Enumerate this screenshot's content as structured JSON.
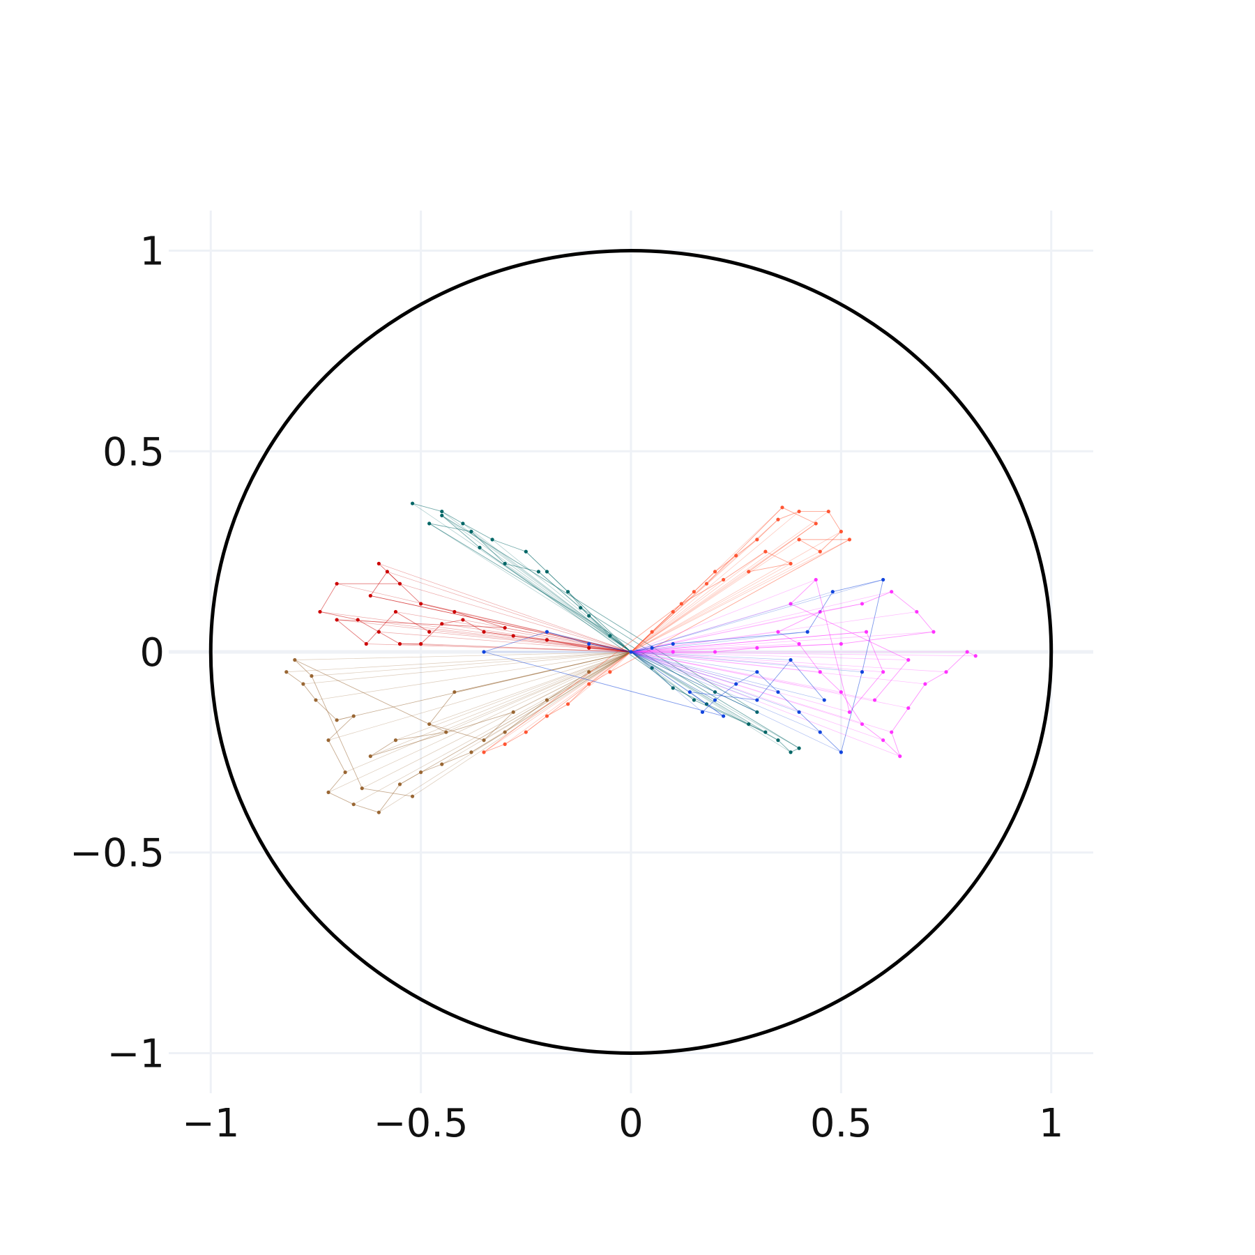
{
  "chart_data": {
    "type": "scatter",
    "title": "",
    "xlabel": "",
    "ylabel": "",
    "xlim": [
      -1.1,
      1.1
    ],
    "ylim": [
      -1.1,
      1.1
    ],
    "grid": true,
    "legend": "none",
    "x_ticks": [
      {
        "value": -1,
        "label": "−1"
      },
      {
        "value": -0.5,
        "label": "−0.5"
      },
      {
        "value": 0,
        "label": "0"
      },
      {
        "value": 0.5,
        "label": "0.5"
      },
      {
        "value": 1,
        "label": "1"
      }
    ],
    "y_ticks": [
      {
        "value": 1,
        "label": "1"
      },
      {
        "value": 0.5,
        "label": "0.5"
      },
      {
        "value": 0,
        "label": "0"
      },
      {
        "value": -0.5,
        "label": "−0.5"
      },
      {
        "value": -1,
        "label": "−1"
      }
    ],
    "unit_circle": {
      "center": [
        0,
        0
      ],
      "radius": 1,
      "color": "#000000"
    },
    "series": [
      {
        "color": "#006666",
        "mode": "lines+markers",
        "points": [
          [
            -0.52,
            0.37
          ],
          [
            -0.45,
            0.35
          ],
          [
            -0.4,
            0.32
          ],
          [
            -0.33,
            0.28
          ],
          [
            -0.25,
            0.25
          ],
          [
            -0.2,
            0.2
          ],
          [
            -0.15,
            0.15
          ],
          [
            -0.1,
            0.09
          ],
          [
            -0.05,
            0.04
          ],
          [
            0.0,
            0.0
          ],
          [
            0.05,
            -0.04
          ],
          [
            0.1,
            -0.09
          ],
          [
            0.18,
            -0.13
          ],
          [
            0.28,
            -0.18
          ],
          [
            0.35,
            -0.22
          ],
          [
            0.38,
            -0.25
          ],
          [
            0.4,
            -0.24
          ],
          [
            -0.48,
            0.32
          ],
          [
            -0.38,
            0.3
          ],
          [
            -0.3,
            0.22
          ],
          [
            -0.22,
            0.2
          ],
          [
            -0.12,
            0.11
          ],
          [
            0.2,
            -0.1
          ],
          [
            0.3,
            -0.15
          ],
          [
            -0.45,
            0.34
          ],
          [
            -0.36,
            0.26
          ],
          [
            0.15,
            -0.12
          ],
          [
            0.32,
            -0.2
          ]
        ]
      },
      {
        "color": "#cc0000",
        "mode": "lines+markers",
        "points": [
          [
            -0.6,
            0.22
          ],
          [
            -0.55,
            0.17
          ],
          [
            -0.7,
            0.17
          ],
          [
            -0.74,
            0.1
          ],
          [
            -0.65,
            0.08
          ],
          [
            -0.6,
            0.05
          ],
          [
            -0.55,
            0.02
          ],
          [
            -0.5,
            0.02
          ],
          [
            -0.45,
            0.07
          ],
          [
            -0.4,
            0.08
          ],
          [
            -0.35,
            0.05
          ],
          [
            -0.28,
            0.04
          ],
          [
            -0.2,
            0.03
          ],
          [
            -0.1,
            0.01
          ],
          [
            0.0,
            0.0
          ],
          [
            -0.62,
            0.14
          ],
          [
            -0.58,
            0.2
          ],
          [
            -0.5,
            0.12
          ],
          [
            -0.42,
            0.1
          ],
          [
            -0.3,
            0.06
          ],
          [
            -0.7,
            0.08
          ],
          [
            -0.63,
            0.02
          ],
          [
            -0.56,
            0.1
          ],
          [
            -0.48,
            0.05
          ]
        ]
      },
      {
        "color": "#996633",
        "mode": "lines+markers",
        "points": [
          [
            -0.82,
            -0.05
          ],
          [
            -0.78,
            -0.08
          ],
          [
            -0.75,
            -0.12
          ],
          [
            -0.7,
            -0.17
          ],
          [
            -0.66,
            -0.16
          ],
          [
            -0.72,
            -0.22
          ],
          [
            -0.68,
            -0.3
          ],
          [
            -0.72,
            -0.35
          ],
          [
            -0.66,
            -0.38
          ],
          [
            -0.6,
            -0.4
          ],
          [
            -0.55,
            -0.33
          ],
          [
            -0.5,
            -0.3
          ],
          [
            -0.45,
            -0.28
          ],
          [
            -0.38,
            -0.25
          ],
          [
            -0.3,
            -0.2
          ],
          [
            -0.2,
            -0.12
          ],
          [
            -0.1,
            -0.05
          ],
          [
            0.0,
            0.0
          ],
          [
            -0.42,
            -0.1
          ],
          [
            -0.48,
            -0.18
          ],
          [
            -0.35,
            -0.22
          ],
          [
            -0.28,
            -0.15
          ],
          [
            -0.62,
            -0.26
          ],
          [
            -0.56,
            -0.22
          ],
          [
            -0.44,
            -0.2
          ],
          [
            -0.8,
            -0.02
          ],
          [
            -0.76,
            -0.06
          ],
          [
            -0.64,
            -0.34
          ],
          [
            -0.52,
            -0.36
          ]
        ]
      },
      {
        "color": "#ff5533",
        "mode": "lines+markers",
        "points": [
          [
            0.0,
            0.0
          ],
          [
            0.05,
            0.05
          ],
          [
            0.1,
            0.1
          ],
          [
            0.15,
            0.15
          ],
          [
            0.2,
            0.2
          ],
          [
            0.25,
            0.24
          ],
          [
            0.3,
            0.28
          ],
          [
            0.35,
            0.33
          ],
          [
            0.4,
            0.35
          ],
          [
            0.47,
            0.35
          ],
          [
            0.5,
            0.3
          ],
          [
            0.45,
            0.25
          ],
          [
            0.4,
            0.28
          ],
          [
            0.52,
            0.28
          ],
          [
            -0.05,
            -0.05
          ],
          [
            -0.1,
            -0.08
          ],
          [
            -0.15,
            -0.13
          ],
          [
            -0.2,
            -0.16
          ],
          [
            -0.25,
            -0.2
          ],
          [
            -0.3,
            -0.23
          ],
          [
            -0.35,
            -0.25
          ],
          [
            0.12,
            0.12
          ],
          [
            0.22,
            0.18
          ],
          [
            0.32,
            0.25
          ],
          [
            0.38,
            0.22
          ],
          [
            0.28,
            0.2
          ],
          [
            0.44,
            0.32
          ],
          [
            0.36,
            0.36
          ],
          [
            0.18,
            0.17
          ]
        ]
      },
      {
        "color": "#ff33ff",
        "mode": "lines+markers",
        "points": [
          [
            0.82,
            -0.01
          ],
          [
            0.8,
            0.0
          ],
          [
            0.75,
            -0.05
          ],
          [
            0.7,
            -0.08
          ],
          [
            0.66,
            -0.14
          ],
          [
            0.62,
            -0.2
          ],
          [
            0.64,
            -0.26
          ],
          [
            0.6,
            -0.22
          ],
          [
            0.55,
            -0.18
          ],
          [
            0.5,
            -0.1
          ],
          [
            0.45,
            -0.05
          ],
          [
            0.4,
            0.02
          ],
          [
            0.35,
            0.05
          ],
          [
            0.45,
            0.1
          ],
          [
            0.55,
            0.12
          ],
          [
            0.62,
            0.15
          ],
          [
            0.68,
            0.1
          ],
          [
            0.72,
            0.05
          ],
          [
            0.5,
            0.02
          ],
          [
            0.3,
            0.01
          ],
          [
            0.2,
            0.0
          ],
          [
            0.1,
            0.0
          ],
          [
            0.0,
            0.0
          ],
          [
            0.56,
            0.05
          ],
          [
            0.6,
            -0.05
          ],
          [
            0.52,
            -0.15
          ],
          [
            0.44,
            0.18
          ],
          [
            0.38,
            0.12
          ],
          [
            0.66,
            -0.02
          ],
          [
            0.58,
            -0.12
          ]
        ]
      },
      {
        "color": "#1144dd",
        "mode": "lines+markers",
        "points": [
          [
            0.17,
            -0.15
          ],
          [
            0.2,
            -0.12
          ],
          [
            0.25,
            -0.08
          ],
          [
            0.3,
            -0.05
          ],
          [
            0.35,
            -0.1
          ],
          [
            0.4,
            -0.15
          ],
          [
            0.45,
            -0.2
          ],
          [
            0.5,
            -0.25
          ],
          [
            0.55,
            -0.05
          ],
          [
            0.6,
            0.18
          ],
          [
            0.48,
            0.15
          ],
          [
            0.42,
            0.05
          ],
          [
            0.1,
            0.02
          ],
          [
            0.05,
            0.01
          ],
          [
            0.0,
            0.0
          ],
          [
            -0.1,
            0.02
          ],
          [
            -0.2,
            0.05
          ],
          [
            -0.35,
            0.0
          ],
          [
            0.22,
            -0.16
          ],
          [
            0.14,
            -0.1
          ],
          [
            0.3,
            -0.12
          ],
          [
            0.38,
            -0.02
          ],
          [
            0.46,
            -0.12
          ]
        ]
      }
    ]
  }
}
